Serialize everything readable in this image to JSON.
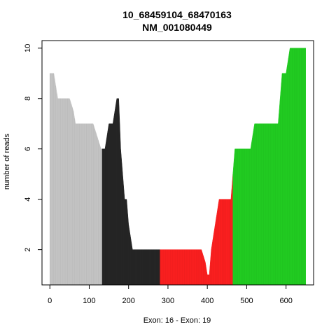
{
  "chart_data": {
    "type": "area",
    "title": "10_68459104_68470163",
    "subtitle": "NM_001080449",
    "xlabel": "Exon: 16 - Exon: 19",
    "ylabel": "number of reads",
    "xlim": [
      -20,
      670
    ],
    "ylim": [
      0.6,
      10.3
    ],
    "x_ticks": [
      0,
      100,
      200,
      300,
      400,
      500,
      600
    ],
    "y_ticks": [
      2,
      4,
      6,
      8,
      10
    ],
    "grid": false,
    "series": [
      {
        "color": "#c8c8c8",
        "points": [
          [
            0,
            9
          ],
          [
            10,
            9
          ],
          [
            20,
            8
          ],
          [
            50,
            8
          ],
          [
            60,
            7.5
          ],
          [
            65,
            7
          ],
          [
            100,
            7
          ],
          [
            110,
            7
          ],
          [
            120,
            6.5
          ],
          [
            130,
            6
          ],
          [
            133,
            6
          ]
        ]
      },
      {
        "color": "#262626",
        "points": [
          [
            133,
            6
          ],
          [
            140,
            6
          ],
          [
            150,
            7
          ],
          [
            160,
            7
          ],
          [
            170,
            8
          ],
          [
            175,
            8
          ],
          [
            180,
            6
          ],
          [
            185,
            5
          ],
          [
            190,
            4
          ],
          [
            195,
            4
          ],
          [
            200,
            3
          ],
          [
            210,
            2
          ],
          [
            280,
            2
          ]
        ]
      },
      {
        "color": "#ff2020",
        "points": [
          [
            280,
            2
          ],
          [
            385,
            2
          ],
          [
            395,
            1.5
          ],
          [
            400,
            1
          ],
          [
            405,
            1
          ],
          [
            410,
            2
          ],
          [
            420,
            3
          ],
          [
            430,
            4
          ],
          [
            450,
            4
          ],
          [
            460,
            4
          ],
          [
            465,
            5
          ]
        ]
      },
      {
        "color": "#22d022",
        "points": [
          [
            465,
            5
          ],
          [
            470,
            6
          ],
          [
            500,
            6
          ],
          [
            510,
            6
          ],
          [
            520,
            7
          ],
          [
            530,
            7
          ],
          [
            580,
            7
          ],
          [
            590,
            9
          ],
          [
            600,
            9
          ],
          [
            610,
            10
          ],
          [
            650,
            10
          ]
        ]
      }
    ]
  }
}
